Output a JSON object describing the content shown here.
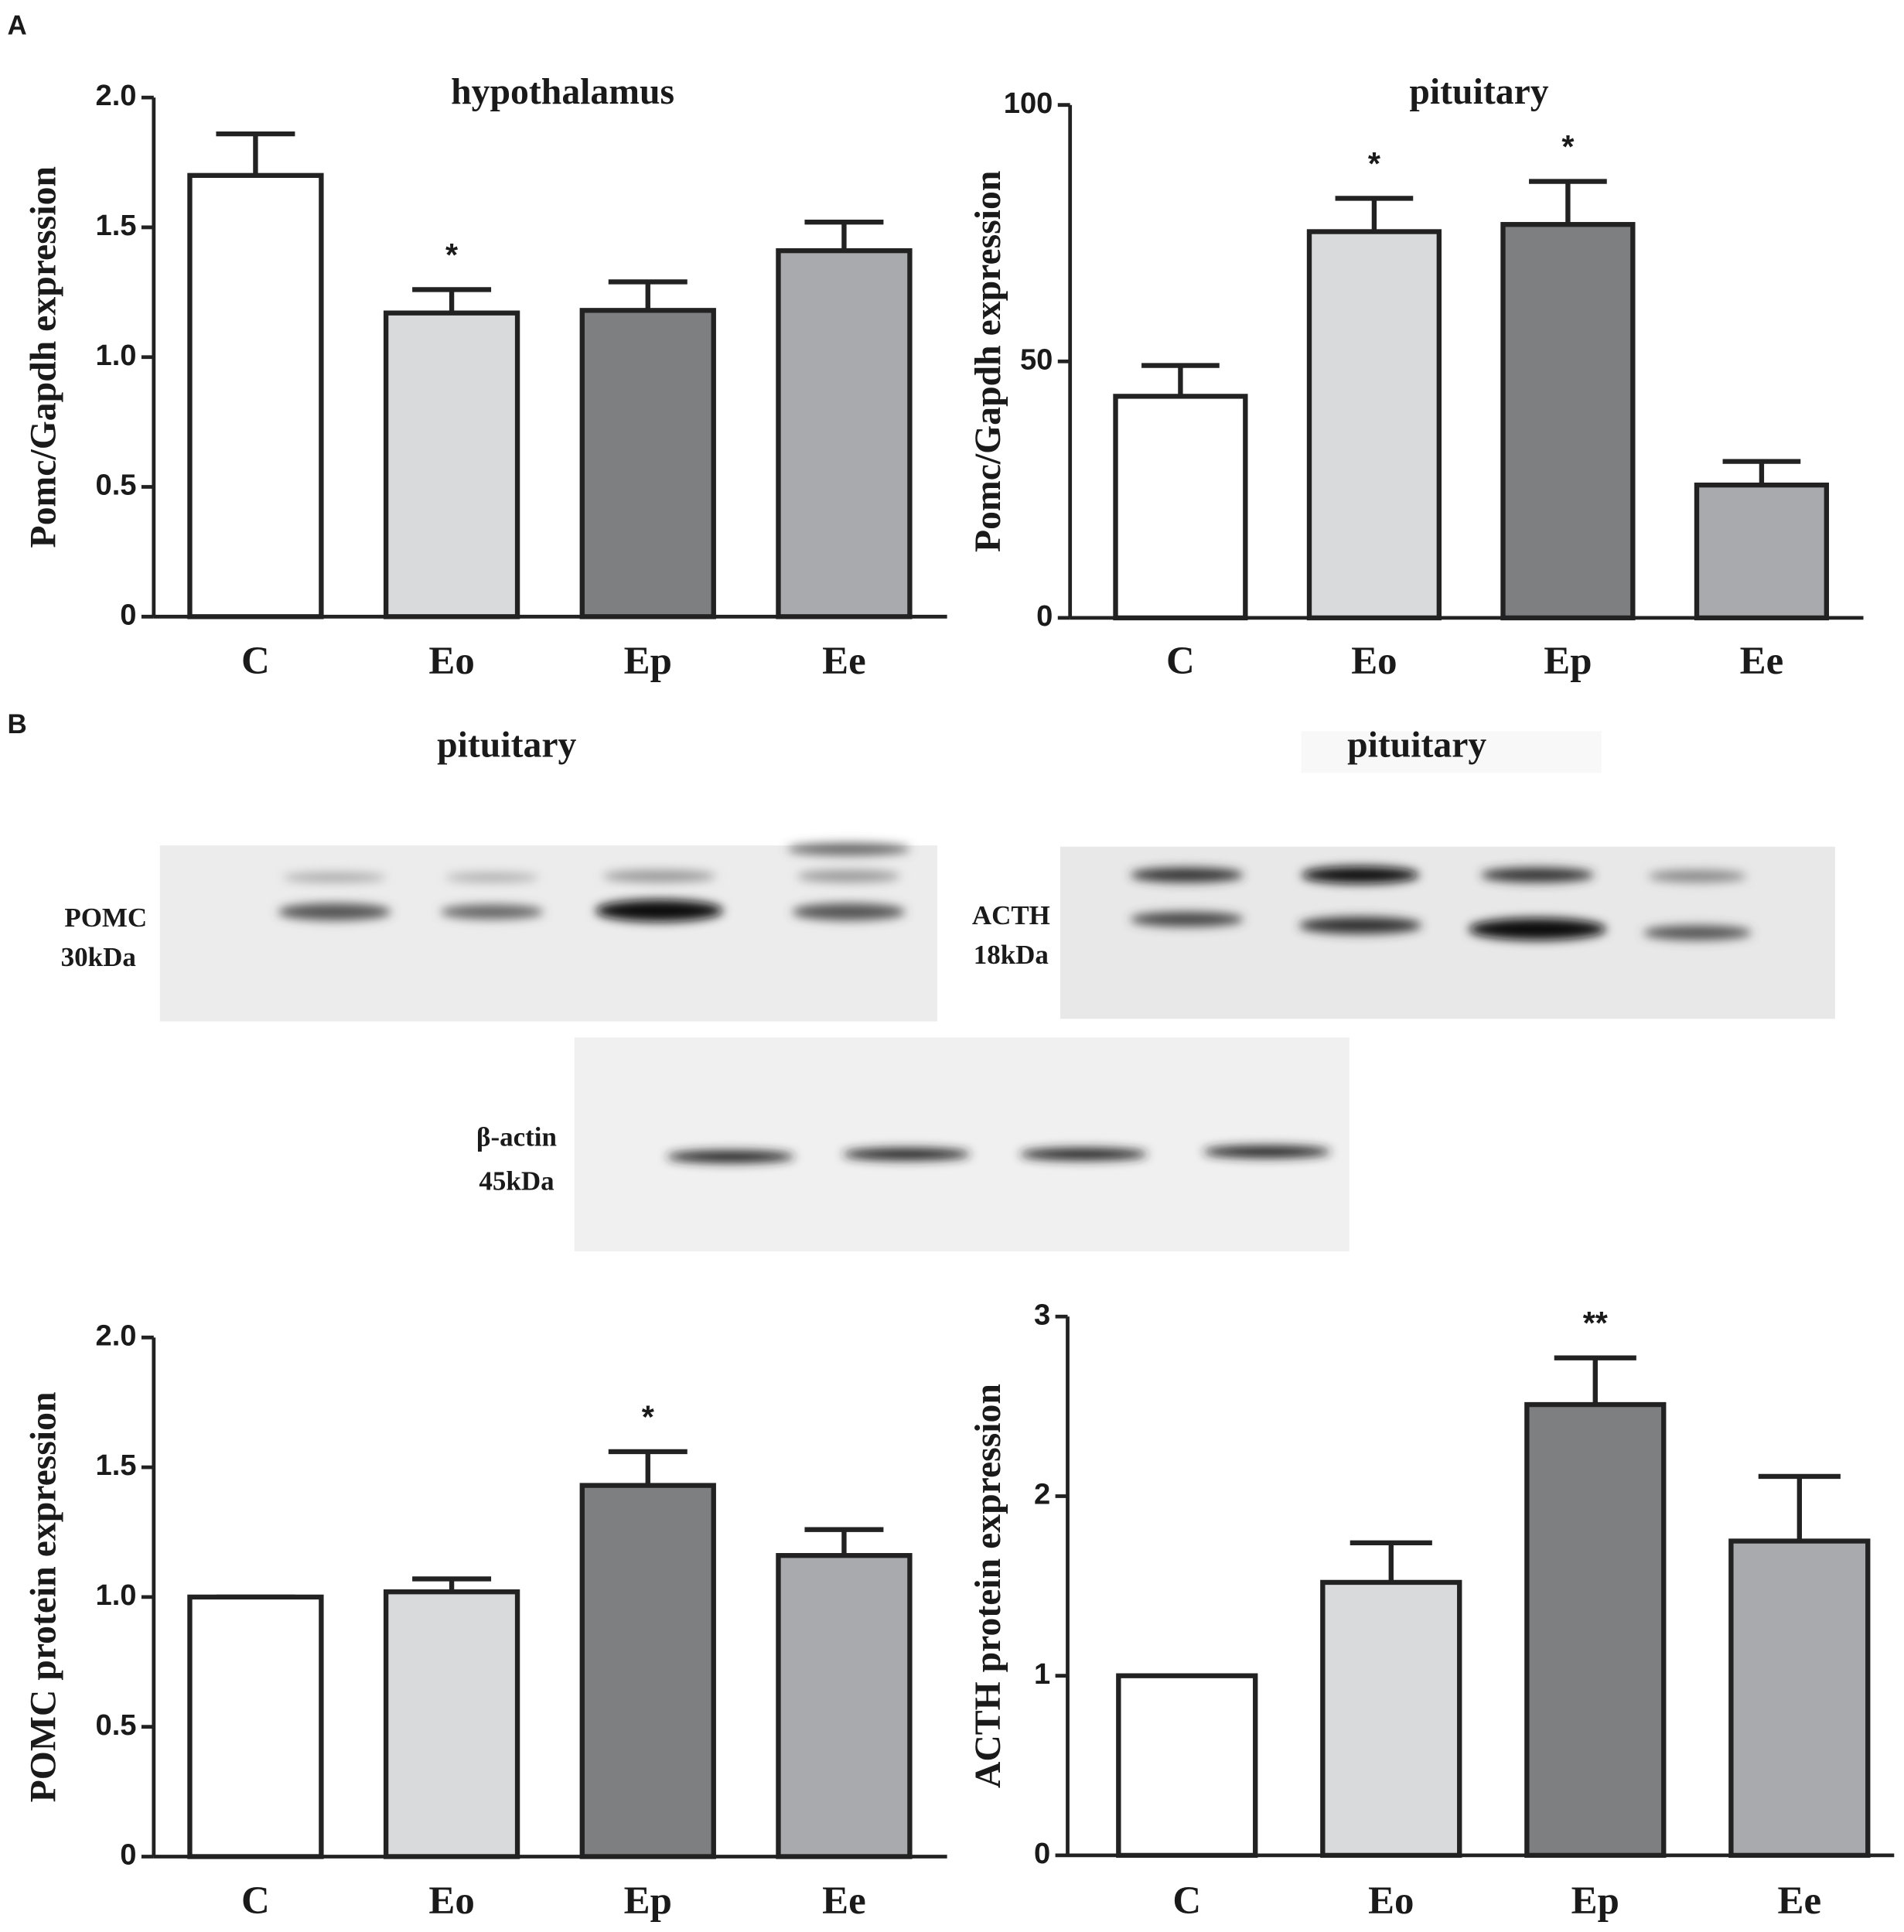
{
  "panels": [
    "A",
    "B"
  ],
  "blots": [
    {
      "title": "pituitary",
      "label": "POMC",
      "size": "30kDa"
    },
    {
      "title": "pituitary",
      "label": "ACTH",
      "size": "18kDa"
    },
    {
      "label": "β-actin",
      "size": "45kDa"
    }
  ],
  "chart_data": [
    {
      "type": "bar",
      "title": "hypothalamus",
      "ylabel": "Pomc/Gapdh expression",
      "categories": [
        "C",
        "Eo",
        "Ep",
        "Ee"
      ],
      "values": [
        1.7,
        1.17,
        1.18,
        1.41
      ],
      "errors": [
        0.16,
        0.09,
        0.11,
        0.11
      ],
      "annotations": [
        null,
        "*",
        null,
        null
      ],
      "colors": [
        "#ffffff",
        "#d9dadc",
        "#7e7f81",
        "#a9aaae"
      ],
      "ylim": [
        0,
        2
      ],
      "yticks": [
        0,
        0.5,
        {
          "value": 1,
          "label": "1.0"
        },
        1.5,
        {
          "value": 2,
          "label": "2.0"
        }
      ]
    },
    {
      "type": "bar",
      "title": "pituitary",
      "ylabel": "Pomc/Gapdh expression",
      "categories": [
        "C",
        "Eo",
        "Ep",
        "Ee"
      ],
      "values": [
        43.2,
        75.3,
        76.7,
        25.9
      ],
      "errors": [
        6,
        6.5,
        8.4,
        4.6
      ],
      "annotations": [
        null,
        "*",
        "*",
        null
      ],
      "colors": [
        "#ffffff",
        "#d9dadc",
        "#7e7f81",
        "#a9aaae"
      ],
      "ylim": [
        0,
        100
      ],
      "yticks": [
        0,
        50,
        100
      ]
    },
    {
      "type": "bar",
      "ylabel": "POMC protein expression",
      "categories": [
        "C",
        "Eo",
        "Ep",
        "Ee"
      ],
      "values": [
        1,
        1.02,
        1.43,
        1.16
      ],
      "errors": [
        0,
        0.05,
        0.13,
        0.1
      ],
      "annotations": [
        null,
        null,
        "*",
        null
      ],
      "colors": [
        "#ffffff",
        "#d9dadc",
        "#7e7f81",
        "#a9aaae"
      ],
      "ylim": [
        0,
        2
      ],
      "yticks": [
        0,
        0.5,
        {
          "value": 1,
          "label": "1.0"
        },
        1.5,
        {
          "value": 2,
          "label": "2.0"
        }
      ]
    },
    {
      "type": "bar",
      "ylabel": "ACTH protein expression",
      "categories": [
        "C",
        "Eo",
        "Ep",
        "Ee"
      ],
      "values": [
        1,
        1.52,
        2.51,
        1.75
      ],
      "errors": [
        0,
        0.22,
        0.26,
        0.36
      ],
      "annotations": [
        null,
        null,
        "**",
        null
      ],
      "colors": [
        "#ffffff",
        "#d9dadc",
        "#7e7f81",
        "#a9aaae"
      ],
      "ylim": [
        0,
        3
      ],
      "yticks": [
        0,
        1,
        2,
        3
      ]
    }
  ]
}
